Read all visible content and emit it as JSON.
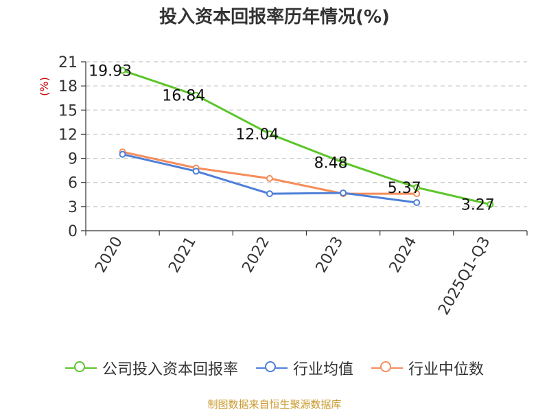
{
  "chart_data": {
    "type": "line",
    "title": "投入资本回报率历年情况(%)",
    "ylabel": "(%)",
    "xlabel": "",
    "categories": [
      "2020",
      "2021",
      "2022",
      "2023",
      "2024",
      "2025Q1-Q3"
    ],
    "ylim": [
      0,
      21
    ],
    "yticks": [
      0,
      3,
      6,
      9,
      12,
      15,
      18,
      21
    ],
    "grid": true,
    "legend_position": "bottom",
    "series": [
      {
        "name": "公司投入资本回报率",
        "color": "#5dc52b",
        "values": [
          19.93,
          16.84,
          12.04,
          8.48,
          5.37,
          3.27
        ],
        "labels": [
          "19.93",
          "16.84",
          "12.04",
          "8.48",
          "5.37",
          "3.27"
        ]
      },
      {
        "name": "行业均值",
        "color": "#4e7fd8",
        "values": [
          9.5,
          7.4,
          4.6,
          4.7,
          3.5,
          null
        ]
      },
      {
        "name": "行业中位数",
        "color": "#f58d5b",
        "values": [
          9.8,
          7.8,
          6.5,
          4.6,
          4.6,
          null
        ]
      }
    ]
  },
  "source": "制图数据来自恒生聚源数据库"
}
